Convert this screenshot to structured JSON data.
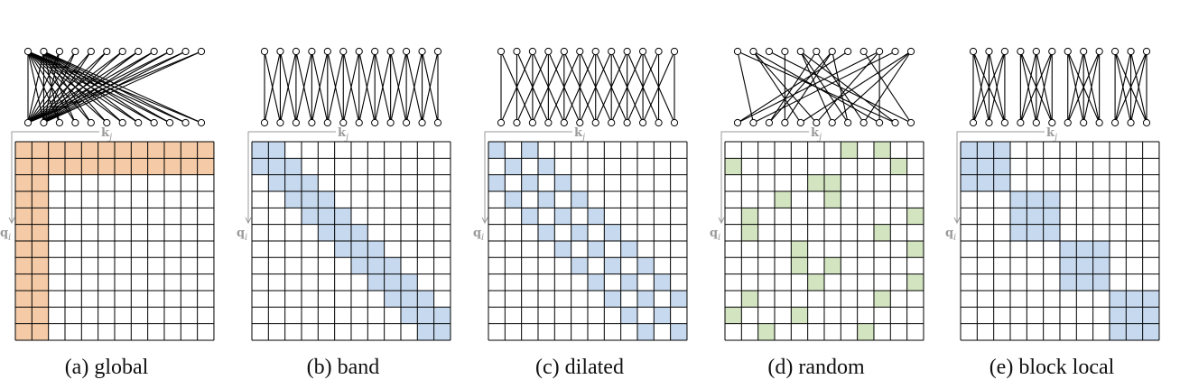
{
  "figure": {
    "grid_size": 12,
    "colors": {
      "global": "#f5cba7",
      "local": "#c6d9ee",
      "random": "#d3e4c1",
      "grid_line": "#000000",
      "axis_gray": "#9a9a9a"
    },
    "axis_labels": {
      "key": "k",
      "key_sub": "j",
      "query": "q",
      "query_sub": "i"
    },
    "panels": [
      {
        "id": "global",
        "caption": "(a)  global",
        "color_key": "global",
        "cells": [
          [
            0,
            0
          ],
          [
            0,
            1
          ],
          [
            0,
            2
          ],
          [
            0,
            3
          ],
          [
            0,
            4
          ],
          [
            0,
            5
          ],
          [
            0,
            6
          ],
          [
            0,
            7
          ],
          [
            0,
            8
          ],
          [
            0,
            9
          ],
          [
            0,
            10
          ],
          [
            0,
            11
          ],
          [
            1,
            0
          ],
          [
            1,
            1
          ],
          [
            1,
            2
          ],
          [
            1,
            3
          ],
          [
            1,
            4
          ],
          [
            1,
            5
          ],
          [
            1,
            6
          ],
          [
            1,
            7
          ],
          [
            1,
            8
          ],
          [
            1,
            9
          ],
          [
            1,
            10
          ],
          [
            1,
            11
          ],
          [
            2,
            0
          ],
          [
            3,
            0
          ],
          [
            4,
            0
          ],
          [
            5,
            0
          ],
          [
            6,
            0
          ],
          [
            7,
            0
          ],
          [
            8,
            0
          ],
          [
            9,
            0
          ],
          [
            10,
            0
          ],
          [
            11,
            0
          ],
          [
            2,
            1
          ],
          [
            3,
            1
          ],
          [
            4,
            1
          ],
          [
            5,
            1
          ],
          [
            6,
            1
          ],
          [
            7,
            1
          ],
          [
            8,
            1
          ],
          [
            9,
            1
          ],
          [
            10,
            1
          ],
          [
            11,
            1
          ]
        ],
        "edges": [
          [
            0,
            0
          ],
          [
            0,
            1
          ],
          [
            0,
            2
          ],
          [
            0,
            3
          ],
          [
            0,
            4
          ],
          [
            0,
            5
          ],
          [
            0,
            6
          ],
          [
            0,
            7
          ],
          [
            0,
            8
          ],
          [
            0,
            9
          ],
          [
            0,
            10
          ],
          [
            0,
            11
          ],
          [
            1,
            0
          ],
          [
            1,
            1
          ],
          [
            1,
            2
          ],
          [
            1,
            3
          ],
          [
            1,
            4
          ],
          [
            1,
            5
          ],
          [
            1,
            6
          ],
          [
            1,
            7
          ],
          [
            1,
            8
          ],
          [
            1,
            9
          ],
          [
            1,
            10
          ],
          [
            1,
            11
          ],
          [
            2,
            0
          ],
          [
            3,
            0
          ],
          [
            4,
            0
          ],
          [
            5,
            0
          ],
          [
            6,
            0
          ],
          [
            7,
            0
          ],
          [
            8,
            0
          ],
          [
            9,
            0
          ],
          [
            10,
            0
          ],
          [
            11,
            0
          ],
          [
            2,
            1
          ],
          [
            3,
            1
          ],
          [
            4,
            1
          ],
          [
            5,
            1
          ],
          [
            6,
            1
          ],
          [
            7,
            1
          ],
          [
            8,
            1
          ],
          [
            9,
            1
          ],
          [
            10,
            1
          ],
          [
            11,
            1
          ]
        ]
      },
      {
        "id": "band",
        "caption": "(b)  band",
        "color_key": "local",
        "cells": [
          [
            0,
            0
          ],
          [
            0,
            1
          ],
          [
            1,
            0
          ],
          [
            1,
            1
          ],
          [
            1,
            2
          ],
          [
            2,
            1
          ],
          [
            2,
            2
          ],
          [
            2,
            3
          ],
          [
            3,
            2
          ],
          [
            3,
            3
          ],
          [
            3,
            4
          ],
          [
            4,
            3
          ],
          [
            4,
            4
          ],
          [
            4,
            5
          ],
          [
            5,
            4
          ],
          [
            5,
            5
          ],
          [
            5,
            6
          ],
          [
            6,
            5
          ],
          [
            6,
            6
          ],
          [
            6,
            7
          ],
          [
            7,
            6
          ],
          [
            7,
            7
          ],
          [
            7,
            8
          ],
          [
            8,
            7
          ],
          [
            8,
            8
          ],
          [
            8,
            9
          ],
          [
            9,
            8
          ],
          [
            9,
            9
          ],
          [
            9,
            10
          ],
          [
            10,
            9
          ],
          [
            10,
            10
          ],
          [
            10,
            11
          ],
          [
            11,
            10
          ],
          [
            11,
            11
          ]
        ],
        "edges": [
          [
            0,
            0
          ],
          [
            0,
            1
          ],
          [
            1,
            0
          ],
          [
            1,
            1
          ],
          [
            1,
            2
          ],
          [
            2,
            1
          ],
          [
            2,
            2
          ],
          [
            2,
            3
          ],
          [
            3,
            2
          ],
          [
            3,
            3
          ],
          [
            3,
            4
          ],
          [
            4,
            3
          ],
          [
            4,
            4
          ],
          [
            4,
            5
          ],
          [
            5,
            4
          ],
          [
            5,
            5
          ],
          [
            5,
            6
          ],
          [
            6,
            5
          ],
          [
            6,
            6
          ],
          [
            6,
            7
          ],
          [
            7,
            6
          ],
          [
            7,
            7
          ],
          [
            7,
            8
          ],
          [
            8,
            7
          ],
          [
            8,
            8
          ],
          [
            8,
            9
          ],
          [
            9,
            8
          ],
          [
            9,
            9
          ],
          [
            9,
            10
          ],
          [
            10,
            9
          ],
          [
            10,
            10
          ],
          [
            10,
            11
          ],
          [
            11,
            10
          ],
          [
            11,
            11
          ]
        ]
      },
      {
        "id": "dilated",
        "caption": "(c)  dilated",
        "color_key": "local",
        "cells": [
          [
            0,
            0
          ],
          [
            0,
            2
          ],
          [
            1,
            1
          ],
          [
            1,
            3
          ],
          [
            2,
            0
          ],
          [
            2,
            2
          ],
          [
            2,
            4
          ],
          [
            3,
            1
          ],
          [
            3,
            3
          ],
          [
            3,
            5
          ],
          [
            4,
            2
          ],
          [
            4,
            4
          ],
          [
            4,
            6
          ],
          [
            5,
            3
          ],
          [
            5,
            5
          ],
          [
            5,
            7
          ],
          [
            6,
            4
          ],
          [
            6,
            6
          ],
          [
            6,
            8
          ],
          [
            7,
            5
          ],
          [
            7,
            7
          ],
          [
            7,
            9
          ],
          [
            8,
            6
          ],
          [
            8,
            8
          ],
          [
            8,
            10
          ],
          [
            9,
            7
          ],
          [
            9,
            9
          ],
          [
            9,
            11
          ],
          [
            10,
            8
          ],
          [
            10,
            10
          ],
          [
            11,
            9
          ],
          [
            11,
            11
          ]
        ],
        "edges": [
          [
            0,
            0
          ],
          [
            0,
            2
          ],
          [
            1,
            1
          ],
          [
            1,
            3
          ],
          [
            2,
            0
          ],
          [
            2,
            2
          ],
          [
            2,
            4
          ],
          [
            3,
            1
          ],
          [
            3,
            3
          ],
          [
            3,
            5
          ],
          [
            4,
            2
          ],
          [
            4,
            4
          ],
          [
            4,
            6
          ],
          [
            5,
            3
          ],
          [
            5,
            5
          ],
          [
            5,
            7
          ],
          [
            6,
            4
          ],
          [
            6,
            6
          ],
          [
            6,
            8
          ],
          [
            7,
            5
          ],
          [
            7,
            7
          ],
          [
            7,
            9
          ],
          [
            8,
            6
          ],
          [
            8,
            8
          ],
          [
            8,
            10
          ],
          [
            9,
            7
          ],
          [
            9,
            9
          ],
          [
            9,
            11
          ],
          [
            10,
            8
          ],
          [
            10,
            10
          ],
          [
            11,
            9
          ],
          [
            11,
            11
          ]
        ]
      },
      {
        "id": "random",
        "caption": "(d)  random",
        "color_key": "random",
        "cells": [
          [
            0,
            7
          ],
          [
            0,
            9
          ],
          [
            1,
            0
          ],
          [
            1,
            10
          ],
          [
            2,
            5
          ],
          [
            2,
            6
          ],
          [
            3,
            3
          ],
          [
            3,
            6
          ],
          [
            4,
            1
          ],
          [
            4,
            11
          ],
          [
            5,
            1
          ],
          [
            5,
            9
          ],
          [
            6,
            4
          ],
          [
            6,
            11
          ],
          [
            7,
            4
          ],
          [
            7,
            6
          ],
          [
            8,
            5
          ],
          [
            8,
            11
          ],
          [
            9,
            1
          ],
          [
            9,
            9
          ],
          [
            10,
            0
          ],
          [
            10,
            4
          ],
          [
            11,
            2
          ],
          [
            11,
            8
          ]
        ],
        "edges": [
          [
            0,
            7
          ],
          [
            0,
            9
          ],
          [
            1,
            0
          ],
          [
            1,
            10
          ],
          [
            2,
            5
          ],
          [
            2,
            6
          ],
          [
            3,
            3
          ],
          [
            3,
            6
          ],
          [
            4,
            1
          ],
          [
            4,
            11
          ],
          [
            5,
            1
          ],
          [
            5,
            9
          ],
          [
            6,
            4
          ],
          [
            6,
            11
          ],
          [
            7,
            4
          ],
          [
            7,
            6
          ],
          [
            8,
            5
          ],
          [
            8,
            11
          ],
          [
            9,
            1
          ],
          [
            9,
            9
          ],
          [
            10,
            0
          ],
          [
            10,
            4
          ],
          [
            11,
            2
          ],
          [
            11,
            8
          ]
        ]
      },
      {
        "id": "block-local",
        "caption": "(e)  block local",
        "color_key": "local",
        "cells": [
          [
            0,
            0
          ],
          [
            0,
            1
          ],
          [
            0,
            2
          ],
          [
            1,
            0
          ],
          [
            1,
            1
          ],
          [
            1,
            2
          ],
          [
            2,
            0
          ],
          [
            2,
            1
          ],
          [
            2,
            2
          ],
          [
            3,
            3
          ],
          [
            3,
            4
          ],
          [
            3,
            5
          ],
          [
            4,
            3
          ],
          [
            4,
            4
          ],
          [
            4,
            5
          ],
          [
            5,
            3
          ],
          [
            5,
            4
          ],
          [
            5,
            5
          ],
          [
            6,
            6
          ],
          [
            6,
            7
          ],
          [
            6,
            8
          ],
          [
            7,
            6
          ],
          [
            7,
            7
          ],
          [
            7,
            8
          ],
          [
            8,
            6
          ],
          [
            8,
            7
          ],
          [
            8,
            8
          ],
          [
            9,
            9
          ],
          [
            9,
            10
          ],
          [
            9,
            11
          ],
          [
            10,
            9
          ],
          [
            10,
            10
          ],
          [
            10,
            11
          ],
          [
            11,
            9
          ],
          [
            11,
            10
          ],
          [
            11,
            11
          ]
        ],
        "edges": [
          [
            0,
            0
          ],
          [
            0,
            1
          ],
          [
            0,
            2
          ],
          [
            1,
            0
          ],
          [
            1,
            1
          ],
          [
            1,
            2
          ],
          [
            2,
            0
          ],
          [
            2,
            1
          ],
          [
            2,
            2
          ],
          [
            3,
            3
          ],
          [
            3,
            4
          ],
          [
            3,
            5
          ],
          [
            4,
            3
          ],
          [
            4,
            4
          ],
          [
            4,
            5
          ],
          [
            5,
            3
          ],
          [
            5,
            4
          ],
          [
            5,
            5
          ],
          [
            6,
            6
          ],
          [
            6,
            7
          ],
          [
            6,
            8
          ],
          [
            7,
            6
          ],
          [
            7,
            7
          ],
          [
            7,
            8
          ],
          [
            8,
            6
          ],
          [
            8,
            7
          ],
          [
            8,
            8
          ],
          [
            9,
            9
          ],
          [
            9,
            10
          ],
          [
            9,
            11
          ],
          [
            10,
            9
          ],
          [
            10,
            10
          ],
          [
            10,
            11
          ],
          [
            11,
            9
          ],
          [
            11,
            10
          ],
          [
            11,
            11
          ]
        ]
      }
    ]
  }
}
